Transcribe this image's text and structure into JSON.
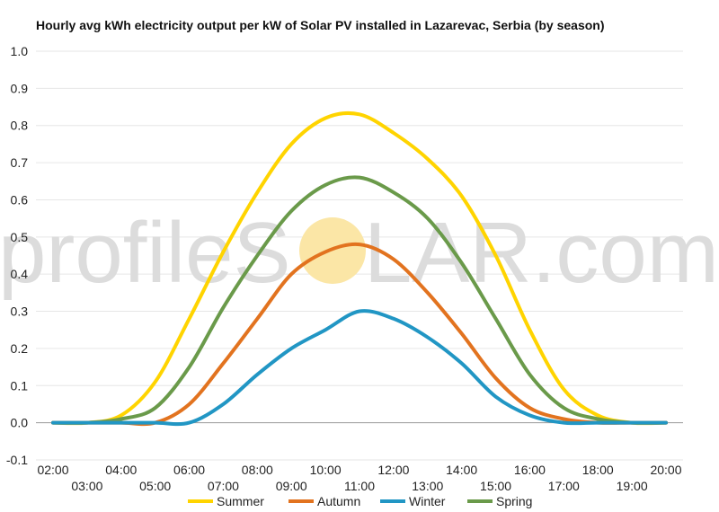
{
  "watermark": {
    "left": "profileS",
    "right": "LAR.com",
    "sun_color": "#fbe6a6"
  },
  "chart_data": {
    "type": "line",
    "title": "Hourly avg kWh electricity output per kW of Solar PV installed in Lazarevac, Serbia (by season)",
    "xlabel": "",
    "ylabel": "",
    "ylim": [
      -0.1,
      1.0
    ],
    "xlim": [
      2,
      20
    ],
    "grid": true,
    "legend_position": "bottom",
    "y_ticks": [
      "1.0",
      "0.9",
      "0.8",
      "0.7",
      "0.6",
      "0.5",
      "0.4",
      "0.3",
      "0.2",
      "0.1",
      "0.0",
      "-0.1"
    ],
    "x_ticks_upper": [
      "02:00",
      "04:00",
      "06:00",
      "08:00",
      "10:00",
      "12:00",
      "14:00",
      "16:00",
      "18:00",
      "20:00"
    ],
    "x_ticks_lower": [
      "03:00",
      "05:00",
      "07:00",
      "09:00",
      "11:00",
      "13:00",
      "15:00",
      "17:00",
      "19:00"
    ],
    "x": [
      2,
      3,
      4,
      5,
      6,
      7,
      8,
      9,
      10,
      11,
      12,
      13,
      14,
      15,
      16,
      17,
      18,
      19,
      20
    ],
    "series": [
      {
        "name": "Summer",
        "color": "#ffd400",
        "values": [
          0.0,
          0.0,
          0.02,
          0.11,
          0.28,
          0.46,
          0.62,
          0.75,
          0.82,
          0.83,
          0.78,
          0.71,
          0.61,
          0.45,
          0.25,
          0.09,
          0.02,
          0.0,
          0.0
        ]
      },
      {
        "name": "Autumn",
        "color": "#e2731f",
        "values": [
          0.0,
          0.0,
          0.0,
          0.0,
          0.05,
          0.16,
          0.28,
          0.4,
          0.46,
          0.48,
          0.44,
          0.35,
          0.24,
          0.12,
          0.04,
          0.01,
          0.0,
          0.0,
          0.0
        ]
      },
      {
        "name": "Winter",
        "color": "#2196c4",
        "values": [
          0.0,
          0.0,
          0.0,
          0.0,
          0.0,
          0.05,
          0.13,
          0.2,
          0.25,
          0.3,
          0.28,
          0.23,
          0.16,
          0.07,
          0.02,
          0.0,
          0.0,
          0.0,
          0.0
        ]
      },
      {
        "name": "Spring",
        "color": "#6a9a4a",
        "values": [
          0.0,
          0.0,
          0.01,
          0.04,
          0.15,
          0.31,
          0.45,
          0.57,
          0.64,
          0.66,
          0.62,
          0.55,
          0.43,
          0.28,
          0.13,
          0.04,
          0.01,
          0.0,
          0.0
        ]
      }
    ]
  }
}
